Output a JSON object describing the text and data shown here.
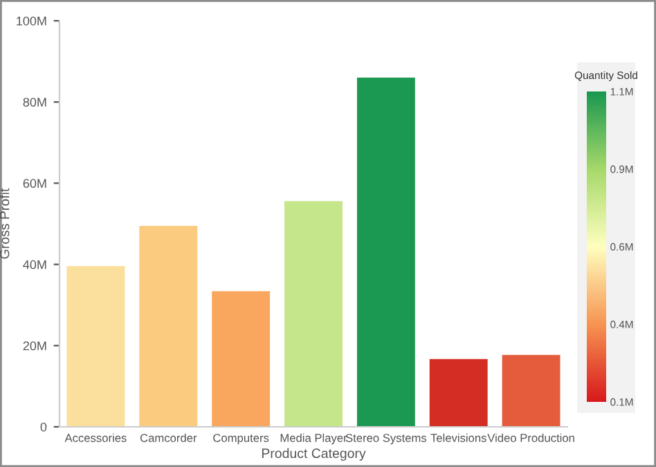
{
  "chart_data": {
    "type": "bar",
    "xlabel": "Product Category",
    "ylabel": "Gross Profit",
    "categories": [
      "Accessories",
      "Camcorder",
      "Computers",
      "Media Player",
      "Stereo Systems",
      "Televisions",
      "Video Production"
    ],
    "values": [
      39600000,
      49500000,
      33400000,
      55600000,
      86000000,
      16700000,
      17700000
    ],
    "colors": [
      "#fbdf9c",
      "#fbcb80",
      "#f9a65e",
      "#c5e68a",
      "#1b9852",
      "#d42d24",
      "#e55c3c"
    ],
    "ylim": [
      0,
      100000000
    ],
    "yticks": [
      {
        "value": 0,
        "label": "0"
      },
      {
        "value": 20000000,
        "label": "20M"
      },
      {
        "value": 40000000,
        "label": "40M"
      },
      {
        "value": 60000000,
        "label": "60M"
      },
      {
        "value": 80000000,
        "label": "80M"
      },
      {
        "value": 100000000,
        "label": "100M"
      }
    ],
    "clabel": "Quantity Sold",
    "clim": [
      100000,
      1100000
    ],
    "cticks": [
      {
        "value": 100000,
        "label": "0.1M"
      },
      {
        "value": 350000,
        "label": "0.4M"
      },
      {
        "value": 600000,
        "label": "0.6M"
      },
      {
        "value": 850000,
        "label": "0.9M"
      },
      {
        "value": 1100000,
        "label": "1.1M"
      }
    ],
    "grid": false,
    "legend": false
  }
}
